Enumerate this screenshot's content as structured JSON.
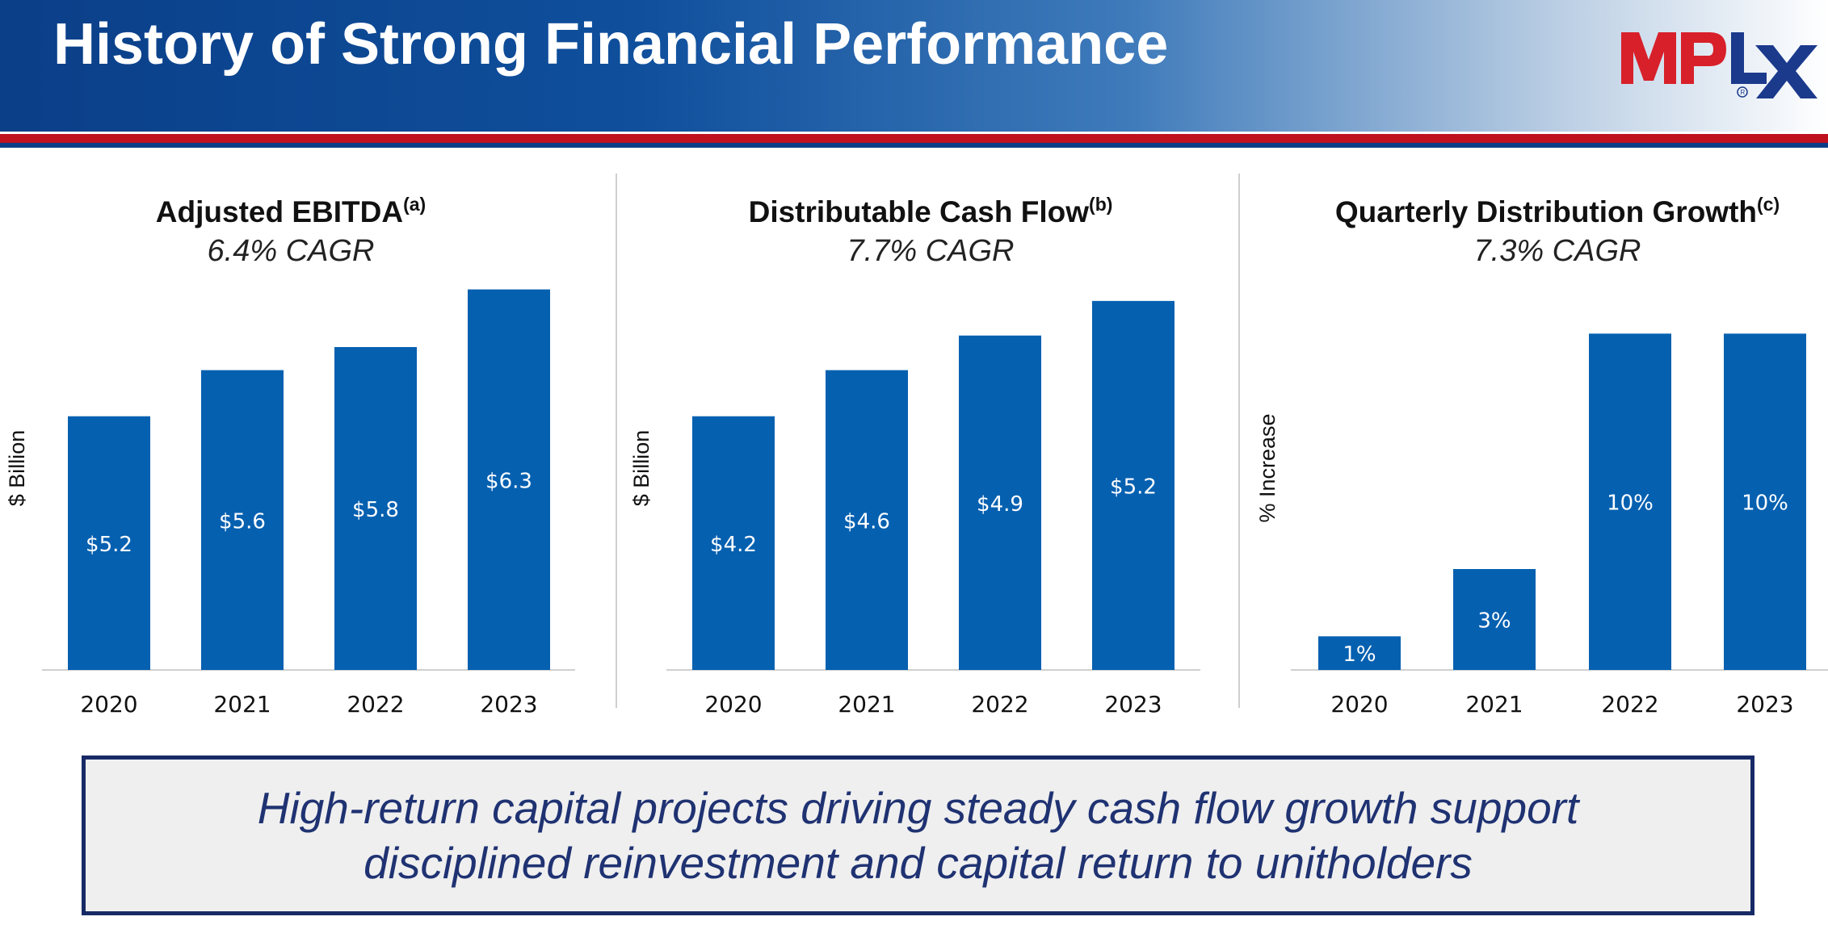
{
  "header": {
    "title": "History of Strong Financial Performance",
    "logo_text": "MPLX"
  },
  "colors": {
    "bar": "#0560b0",
    "header_dark": "#0b3f88",
    "stripe_red": "#c0111f",
    "takeaway_text": "#1f3272"
  },
  "chart_data": [
    {
      "type": "bar",
      "title": "Adjusted EBITDA",
      "title_note": "(a)",
      "subtitle": "6.4% CAGR",
      "ylabel": "$ Billion",
      "categories": [
        "2020",
        "2021",
        "2022",
        "2023"
      ],
      "values": [
        5.2,
        5.6,
        5.8,
        6.3
      ],
      "data_labels": [
        "$5.2",
        "$5.6",
        "$5.8",
        "$6.3"
      ],
      "ylim": [
        3.0,
        6.5
      ],
      "grid": false
    },
    {
      "type": "bar",
      "title": "Distributable Cash Flow",
      "title_note": "(b)",
      "subtitle": "7.7% CAGR",
      "ylabel": "$ Billion",
      "categories": [
        "2020",
        "2021",
        "2022",
        "2023"
      ],
      "values": [
        4.2,
        4.6,
        4.9,
        5.2
      ],
      "data_labels": [
        "$4.2",
        "$4.6",
        "$4.9",
        "$5.2"
      ],
      "ylim": [
        2.0,
        5.5
      ],
      "grid": false
    },
    {
      "type": "bar",
      "title": "Quarterly Distribution Growth",
      "title_note": "(c)",
      "subtitle": "7.3% CAGR",
      "ylabel": "% Increase",
      "categories": [
        "2020",
        "2021",
        "2022",
        "2023"
      ],
      "values": [
        1,
        3,
        10,
        10
      ],
      "data_labels": [
        "1%",
        "3%",
        "10%",
        "10%"
      ],
      "ylim": [
        0,
        12
      ],
      "grid": false
    }
  ],
  "takeaway": {
    "line1": "High-return capital projects driving steady cash flow growth support",
    "line2": "disciplined reinvestment and capital return to unitholders"
  }
}
